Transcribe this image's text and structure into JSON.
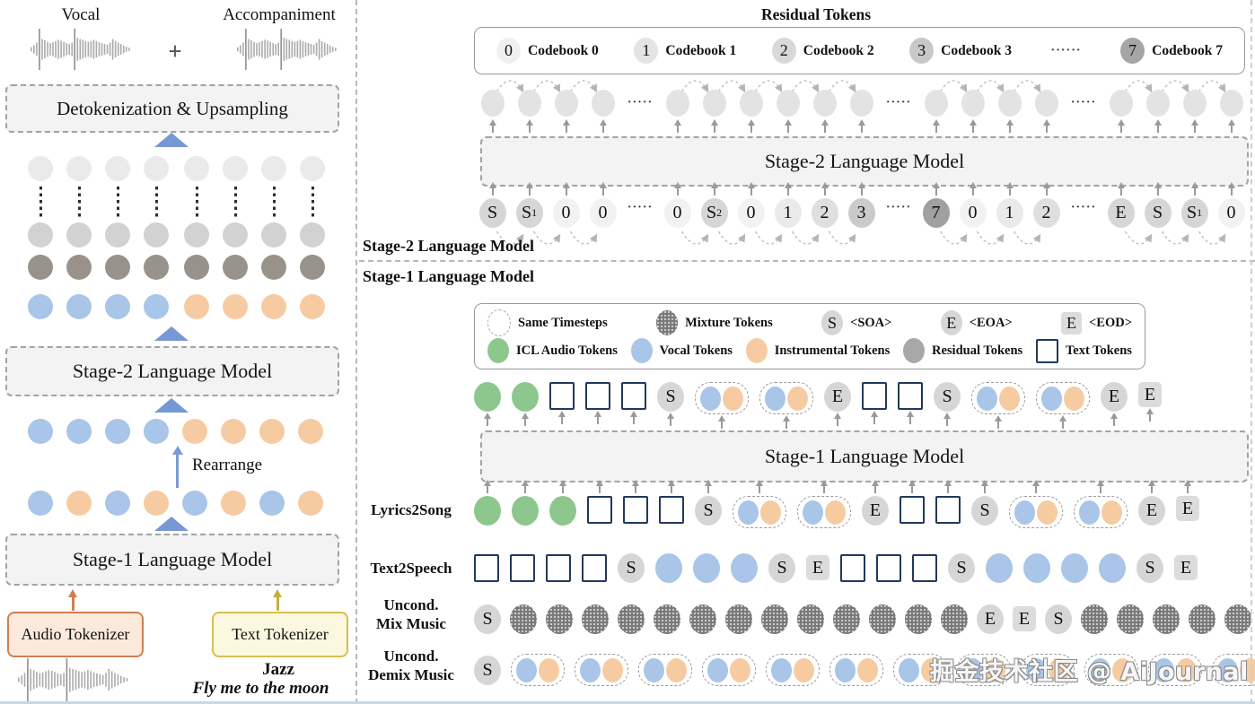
{
  "colors": {
    "blue": "#a9c5e8",
    "orange": "#f7cba2",
    "green": "#8dc78e",
    "gray_token": "#d6d6d6",
    "mixture": "#7a7a7a",
    "light_circle": "#e3e3e3",
    "grid_row1": "#eaeaea",
    "grid_row2": "#d2d2d2",
    "grid_row3": "#98928a",
    "navy_square_border": "#21395c",
    "blue_triangle": "#7698d4",
    "audio_tokenizer_border": "#cf8051",
    "audio_tokenizer_fill": "#fbe9dc",
    "text_tokenizer_border": "#d4c04e",
    "text_tokenizer_fill": "#fcf8df"
  },
  "left": {
    "vocal_label": "Vocal",
    "plus": "+",
    "accompaniment_label": "Accompaniment",
    "detok_box": "Detokenization & Upsampling",
    "stage2_box": "Stage-2 Language Model",
    "rearrange": "Rearrange",
    "stage1_box": "Stage-1 Language Model",
    "audio_tokenizer": "Audio Tokenizer",
    "text_tokenizer": "Text Tokenizer",
    "genre": "Jazz",
    "lyric": "Fly me to the moon",
    "grid_columns": 8,
    "grid_rows": [
      {
        "kind": "plain",
        "color": "#eaeaea"
      },
      {
        "kind": "dots"
      },
      {
        "kind": "plain",
        "color": "#d2d2d2"
      },
      {
        "kind": "plain",
        "color": "#98928a"
      },
      {
        "kind": "colors",
        "colors": [
          "blue",
          "blue",
          "blue",
          "blue",
          "orange",
          "orange",
          "orange",
          "orange"
        ]
      }
    ],
    "mid_row_grouped": [
      "blue",
      "blue",
      "blue",
      "blue",
      "orange",
      "orange",
      "orange",
      "orange"
    ],
    "mid_row_interleaved": [
      "blue",
      "orange",
      "blue",
      "orange",
      "blue",
      "orange",
      "blue",
      "orange"
    ]
  },
  "stage2": {
    "title": "Residual Tokens",
    "codebooks": [
      {
        "num": "0",
        "label": "Codebook 0",
        "fill": "#f0f0f0"
      },
      {
        "num": "1",
        "label": "Codebook 1",
        "fill": "#e4e4e4"
      },
      {
        "num": "2",
        "label": "Codebook 2",
        "fill": "#d8d8d8"
      },
      {
        "num": "3",
        "label": "Codebook 3",
        "fill": "#c8c8c8"
      },
      {
        "num": "7",
        "label": "Codebook 7",
        "fill": "#a5a5a5"
      }
    ],
    "codebook_dots": "······",
    "output_circle_groups": [
      4,
      6,
      4,
      4
    ],
    "model_box": "Stage-2 Language Model",
    "section_label": "Stage-2 Language Model",
    "input_tokens": [
      {
        "t": "S",
        "fill": "#d6d6d6"
      },
      {
        "t": "S",
        "sub": "1",
        "fill": "#d6d6d6"
      },
      {
        "t": "0",
        "fill": "#f2f2f2"
      },
      {
        "t": "0",
        "fill": "#f2f2f2"
      },
      {
        "dots": true
      },
      {
        "t": "0",
        "fill": "#f2f2f2"
      },
      {
        "t": "S",
        "sub": "2",
        "fill": "#d6d6d6"
      },
      {
        "t": "0",
        "fill": "#f2f2f2"
      },
      {
        "t": "1",
        "fill": "#eaeaea"
      },
      {
        "t": "2",
        "fill": "#dfdfdf"
      },
      {
        "t": "3",
        "fill": "#cbcbcb"
      },
      {
        "dots": true
      },
      {
        "t": "7",
        "fill": "#a0a0a0"
      },
      {
        "t": "0",
        "fill": "#f2f2f2"
      },
      {
        "t": "1",
        "fill": "#eaeaea"
      },
      {
        "t": "2",
        "fill": "#dfdfdf"
      },
      {
        "dots": true
      },
      {
        "t": "E",
        "fill": "#d6d6d6"
      },
      {
        "t": "S",
        "fill": "#d6d6d6"
      },
      {
        "t": "S",
        "sub": "1",
        "fill": "#d6d6d6"
      },
      {
        "t": "0",
        "fill": "#f2f2f2"
      }
    ]
  },
  "stage1": {
    "section_label": "Stage-1 Language Model",
    "model_box": "Stage-1 Language Model",
    "legend_row1": [
      {
        "icon": "same",
        "letter": "",
        "label": "Same Timesteps"
      },
      {
        "icon": "mix",
        "letter": "",
        "label": "Mixture Tokens"
      },
      {
        "icon": "S",
        "letter": "S",
        "label": "<SOA>"
      },
      {
        "icon": "E",
        "letter": "E",
        "label": "<EOA>"
      },
      {
        "icon": "Eq",
        "letter": "E",
        "label": "<EOD>"
      }
    ],
    "legend_row2": [
      {
        "icon": "g",
        "letter": "",
        "label": "ICL Audio Tokens"
      },
      {
        "icon": "b",
        "letter": "",
        "label": "Vocal Tokens"
      },
      {
        "icon": "o",
        "letter": "",
        "label": "Instrumental Tokens"
      },
      {
        "icon": "gray",
        "letter": "",
        "label": "Residual Tokens"
      },
      {
        "icon": "sq",
        "letter": "",
        "label": "Text Tokens"
      }
    ],
    "rows": [
      {
        "name": "stage1-output-row",
        "label": "",
        "label2": "",
        "arrows": "below",
        "gap": 12,
        "tokens": [
          "g",
          "g",
          "sq",
          "sq",
          "sq",
          "S",
          "p",
          "p",
          "E",
          "sq",
          "sq",
          "S",
          "p",
          "p",
          "E",
          "Eq"
        ]
      },
      {
        "name": "lyrics2song-row",
        "label": "Lyrics2Song",
        "label2": "",
        "arrows": "above",
        "gap": 12,
        "tokens": [
          "g",
          "g",
          "g",
          "sq",
          "sq",
          "sq",
          "S",
          "p",
          "p",
          "E",
          "sq",
          "sq",
          "S",
          "p",
          "p",
          "E",
          "Eq"
        ]
      },
      {
        "name": "text2speech-row",
        "label": "Text2Speech",
        "label2": "",
        "arrows": "none",
        "gap": 12,
        "tokens": [
          "sq",
          "sq",
          "sq",
          "sq",
          "S",
          "b",
          "b",
          "b",
          "S",
          "Eq",
          "sq",
          "sq",
          "sq",
          "S",
          "b",
          "b",
          "b",
          "b",
          "S",
          "Eq"
        ]
      },
      {
        "name": "uncond-mix-music-row",
        "label": "Uncond.",
        "label2": "Mix Music",
        "arrows": "none",
        "gap": 10,
        "tokens": [
          "S",
          "x",
          "x",
          "x",
          "x",
          "x",
          "x",
          "x",
          "x",
          "x",
          "x",
          "x",
          "x",
          "x",
          "E",
          "Eq",
          "S",
          "x",
          "x",
          "x",
          "x",
          "x"
        ]
      },
      {
        "name": "uncond-demix-music-row",
        "label": "Uncond.",
        "label2": "Demix Music",
        "arrows": "none",
        "gap": 11,
        "tokens": [
          "S",
          "p",
          "p",
          "p",
          "p",
          "p",
          "p",
          "p",
          "p",
          "p",
          "p",
          "p",
          "p"
        ]
      }
    ],
    "token_letters": {
      "S": "S",
      "E": "E",
      "Eq": "E"
    }
  },
  "watermark": "掘金技术社区 @ AiJournal"
}
